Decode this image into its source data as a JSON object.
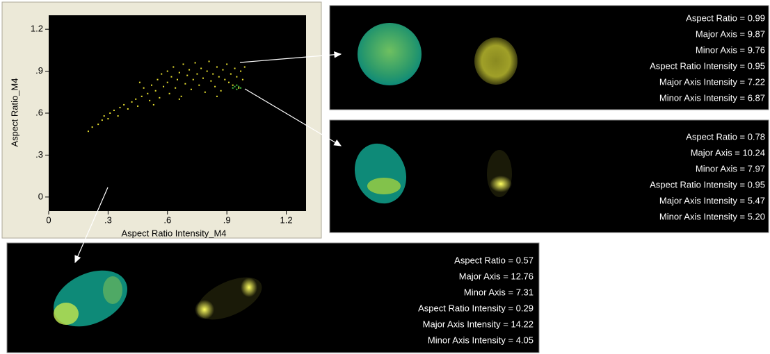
{
  "chart_data": {
    "type": "scatter",
    "xlabel": "Aspect Ratio Intensity_M4",
    "ylabel": "Aspect Ratio_M4",
    "xlim": [
      0,
      1.3
    ],
    "ylim": [
      -0.1,
      1.3
    ],
    "xticks": [
      0,
      {
        "value": 0.3,
        "label": ".3"
      },
      {
        "value": 0.6,
        "label": ".6"
      },
      {
        "value": 0.9,
        "label": ".9"
      },
      1.2
    ],
    "yticks": [
      0,
      {
        "value": 0.3,
        "label": ".3"
      },
      {
        "value": 0.6,
        "label": ".6"
      },
      {
        "value": 0.9,
        "label": ".9"
      },
      1.2
    ],
    "series": [
      {
        "color": "#e8e030",
        "x": [
          0.2,
          0.22,
          0.25,
          0.27,
          0.28,
          0.3,
          0.31,
          0.33,
          0.35,
          0.36,
          0.38,
          0.4,
          0.42,
          0.44,
          0.45,
          0.47,
          0.48,
          0.5,
          0.51,
          0.52,
          0.54,
          0.55,
          0.56,
          0.57,
          0.58,
          0.6,
          0.6,
          0.61,
          0.62,
          0.63,
          0.64,
          0.65,
          0.66,
          0.67,
          0.68,
          0.69,
          0.7,
          0.71,
          0.72,
          0.73,
          0.74,
          0.75,
          0.76,
          0.77,
          0.78,
          0.79,
          0.8,
          0.81,
          0.82,
          0.83,
          0.84,
          0.85,
          0.86,
          0.87,
          0.88,
          0.89,
          0.9,
          0.91,
          0.92,
          0.93,
          0.94,
          0.95,
          0.96,
          0.97,
          0.98,
          0.99,
          0.46,
          0.53,
          0.66,
          0.85
        ],
        "y": [
          0.47,
          0.5,
          0.52,
          0.55,
          0.58,
          0.56,
          0.6,
          0.62,
          0.58,
          0.64,
          0.66,
          0.63,
          0.68,
          0.7,
          0.65,
          0.72,
          0.78,
          0.74,
          0.69,
          0.8,
          0.76,
          0.84,
          0.71,
          0.88,
          0.79,
          0.82,
          0.9,
          0.74,
          0.86,
          0.93,
          0.78,
          0.84,
          0.89,
          0.72,
          0.95,
          0.81,
          0.87,
          0.91,
          0.77,
          0.84,
          0.96,
          0.88,
          0.8,
          0.92,
          0.85,
          0.75,
          0.9,
          0.97,
          0.83,
          0.88,
          0.79,
          0.93,
          0.86,
          0.76,
          0.91,
          0.84,
          0.95,
          0.82,
          0.88,
          0.8,
          0.92,
          0.86,
          0.78,
          0.9,
          0.84,
          0.93,
          0.82,
          0.66,
          0.7,
          0.72
        ]
      },
      {
        "color": "#40c040",
        "x": [
          0.93,
          0.94,
          0.95,
          0.96,
          0.97,
          0.95
        ],
        "y": [
          0.78,
          0.79,
          0.77,
          0.79,
          0.78,
          0.8
        ]
      }
    ]
  },
  "panels": [
    {
      "lines": [
        "Aspect Ratio = 0.99",
        "Major Axis = 9.87",
        "Minor Axis = 9.76",
        "Aspect Ratio Intensity = 0.95",
        "Major Axis Intensity = 7.22",
        "Minor Axis Intensity = 6.87"
      ]
    },
    {
      "lines": [
        "Aspect Ratio = 0.78",
        "Major Axis = 10.24",
        "Minor Axis = 7.97",
        "Aspect Ratio Intensity = 0.95",
        "Major Axis Intensity = 5.47",
        "Minor Axis Intensity = 5.20"
      ]
    },
    {
      "lines": [
        "Aspect Ratio = 0.57",
        "Major Axis = 12.76",
        "Minor Axis = 7.31",
        "Aspect Ratio Intensity = 0.29",
        "Major Axis Intensity = 14.22",
        "Minor Axis Intensity = 4.05"
      ]
    }
  ]
}
